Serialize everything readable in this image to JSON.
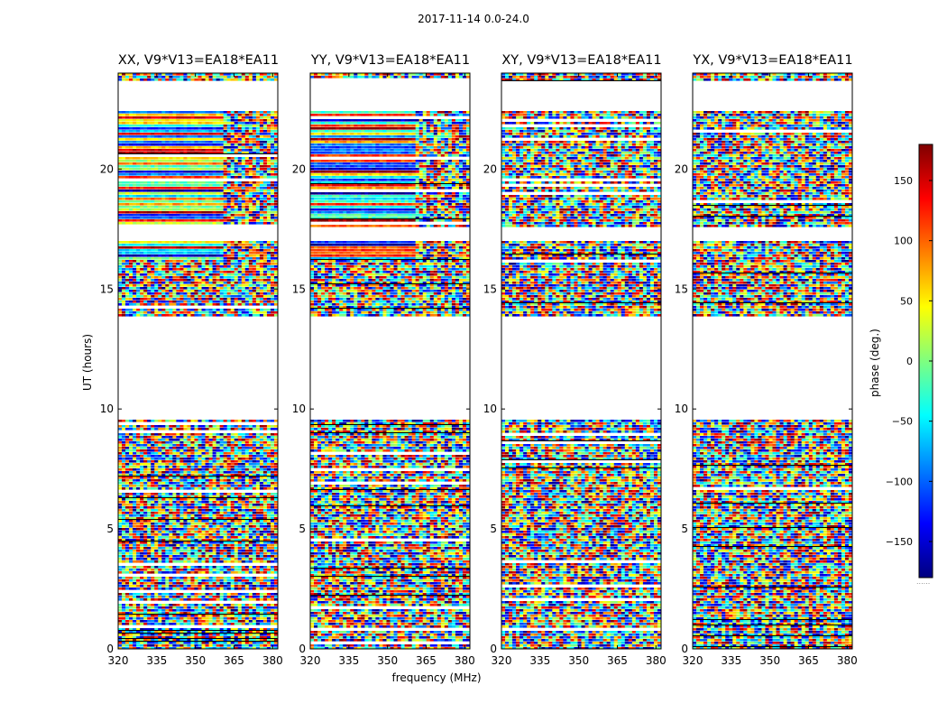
{
  "figure": {
    "suptitle": "2017-11-14 0.0-24.0",
    "xlabel": "frequency (MHz)",
    "ylabel": "UT (hours)",
    "colorbar_label": "phase (deg.)",
    "colorbar_footer": "......"
  },
  "chart_data": [
    {
      "type": "heatmap",
      "title": "XX, V9*V13=EA18*EA11",
      "xlim": [
        320,
        382
      ],
      "ylim": [
        0,
        24
      ],
      "xticks": [
        320,
        335,
        350,
        365,
        380
      ],
      "yticks": [
        0,
        5,
        10,
        15,
        20
      ],
      "coherent_region": {
        "x": [
          320,
          360
        ],
        "y": [
          16.3,
          23.7
        ]
      },
      "noise_region": {
        "x": [
          360,
          382
        ],
        "y": [
          0,
          23.7
        ]
      }
    },
    {
      "type": "heatmap",
      "title": "YY, V9*V13=EA18*EA11",
      "xlim": [
        320,
        382
      ],
      "ylim": [
        0,
        24
      ],
      "xticks": [
        320,
        335,
        350,
        365,
        380
      ],
      "yticks": [
        0,
        5,
        10,
        15,
        20
      ],
      "coherent_region": {
        "x": [
          320,
          360
        ],
        "y": [
          16.3,
          23.7
        ]
      },
      "noise_region": {
        "x": [
          360,
          382
        ],
        "y": [
          0,
          23.7
        ]
      }
    },
    {
      "type": "heatmap",
      "title": "XY, V9*V13=EA18*EA11",
      "xlim": [
        320,
        382
      ],
      "ylim": [
        0,
        24
      ],
      "xticks": [
        320,
        335,
        350,
        365,
        380
      ],
      "yticks": [
        0,
        5,
        10,
        15,
        20
      ]
    },
    {
      "type": "heatmap",
      "title": "YX, V9*V13=EA18*EA11",
      "xlim": [
        320,
        382
      ],
      "ylim": [
        0,
        24
      ],
      "xticks": [
        320,
        335,
        350,
        365,
        380
      ],
      "yticks": [
        0,
        5,
        10,
        15,
        20
      ]
    }
  ],
  "gaps_ut_hours": [
    [
      13.9,
      9.6
    ],
    [
      17.6,
      17.1
    ],
    [
      23.7,
      22.5
    ]
  ],
  "colorbar": {
    "range": [
      -180,
      180
    ],
    "ticks": [
      150,
      100,
      50,
      0,
      -50,
      -100,
      -150
    ],
    "tick_labels": [
      "150",
      "100",
      "50",
      "0",
      "−50",
      "−100",
      "−150"
    ],
    "colormap": [
      "#00007f",
      "#0000ff",
      "#007fff",
      "#00ffff",
      "#7fff7f",
      "#ffff00",
      "#ff7f00",
      "#ff0000",
      "#7f0000"
    ]
  }
}
